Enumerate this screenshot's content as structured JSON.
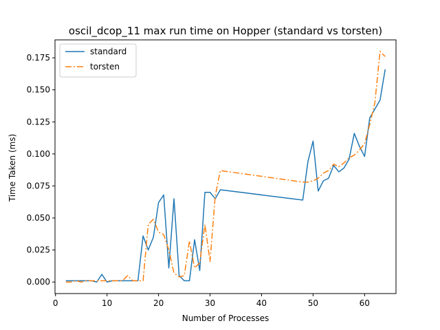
{
  "chart_data": {
    "type": "line",
    "title": "oscil_dcop_11 max run time on Hopper (standard vs torsten)",
    "xlabel": "Number of Processes",
    "ylabel": "Time Taken (ms)",
    "xlim": [
      -0.1,
      66.1
    ],
    "ylim": [
      -0.009,
      0.189
    ],
    "xticks": [
      0,
      10,
      20,
      30,
      40,
      50,
      60
    ],
    "xtick_labels": [
      "0",
      "10",
      "20",
      "30",
      "40",
      "50",
      "60"
    ],
    "yticks": [
      0.0,
      0.025,
      0.05,
      0.075,
      0.1,
      0.125,
      0.15,
      0.175
    ],
    "ytick_labels": [
      "0.000",
      "0.025",
      "0.050",
      "0.075",
      "0.100",
      "0.125",
      "0.150",
      "0.175"
    ],
    "grid": false,
    "legend_position": "top-left",
    "series": [
      {
        "name": "standard",
        "color": "#1f77b4",
        "style": "solid",
        "x": [
          2,
          3,
          4,
          5,
          6,
          7,
          8,
          9,
          10,
          11,
          12,
          13,
          14,
          15,
          16,
          17,
          18,
          19,
          20,
          21,
          22,
          23,
          24,
          25,
          26,
          27,
          28,
          29,
          30,
          31,
          32,
          48,
          49,
          50,
          51,
          52,
          53,
          54,
          55,
          56,
          57,
          58,
          59,
          60,
          61,
          62,
          63,
          64
        ],
        "y": [
          0.001,
          0.001,
          0.001,
          0.001,
          0.001,
          0.001,
          0.0,
          0.006,
          0.0,
          0.001,
          0.001,
          0.001,
          0.001,
          0.001,
          0.001,
          0.036,
          0.025,
          0.035,
          0.062,
          0.068,
          0.011,
          0.065,
          0.005,
          0.001,
          0.001,
          0.033,
          0.009,
          0.07,
          0.07,
          0.065,
          0.072,
          0.064,
          0.094,
          0.11,
          0.071,
          0.079,
          0.081,
          0.091,
          0.086,
          0.089,
          0.096,
          0.116,
          0.106,
          0.098,
          0.128,
          0.135,
          0.142,
          0.166
        ]
      },
      {
        "name": "torsten",
        "color": "#ff7f0e",
        "style": "dashdot",
        "x": [
          2,
          3,
          4,
          5,
          6,
          7,
          8,
          9,
          10,
          11,
          12,
          13,
          14,
          15,
          16,
          17,
          18,
          19,
          20,
          21,
          22,
          23,
          24,
          25,
          26,
          27,
          28,
          29,
          30,
          31,
          32,
          48,
          49,
          50,
          51,
          52,
          53,
          54,
          55,
          56,
          57,
          58,
          59,
          60,
          61,
          62,
          63,
          64
        ],
        "y": [
          0.0,
          0.0,
          0.001,
          0.0,
          0.001,
          0.001,
          0.001,
          0.001,
          0.001,
          0.001,
          0.001,
          0.001,
          0.005,
          0.001,
          0.001,
          0.001,
          0.045,
          0.049,
          0.039,
          0.037,
          0.025,
          0.007,
          0.004,
          0.005,
          0.032,
          0.011,
          0.015,
          0.045,
          0.016,
          0.067,
          0.087,
          0.078,
          0.078,
          0.079,
          0.081,
          0.085,
          0.087,
          0.092,
          0.09,
          0.093,
          0.097,
          0.099,
          0.103,
          0.108,
          0.123,
          0.14,
          0.18,
          0.176
        ]
      }
    ]
  }
}
